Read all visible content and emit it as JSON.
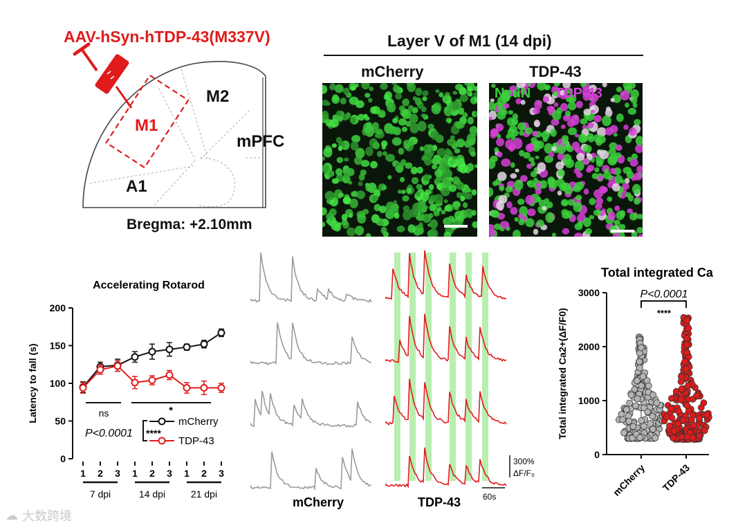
{
  "brain_schematic": {
    "injection_label": "AAV-hSyn-hTDP-43(M337V)",
    "region_m1": "M1",
    "region_m2": "M2",
    "region_mpfc": "mPFC",
    "region_a1": "A1",
    "bregma": "Bregma: +2.10mm",
    "colors": {
      "injection": "#e01b1b",
      "outline": "#333333"
    }
  },
  "microscopy": {
    "header": "Layer V of M1 (14 dpi)",
    "left_title": "mCherry",
    "right_title": "TDP-43",
    "stain_neun": "NeuN",
    "stain_tdp": "TDP-43",
    "colors": {
      "neun": "#3ccf3c",
      "tdp": "#d63fd6"
    }
  },
  "rotarod": {
    "chart_data": {
      "type": "line",
      "title": "Accelerating Rotarod",
      "ylabel": "Latency to fall (s)",
      "ylim": [
        0,
        200
      ],
      "yticks": [
        0,
        50,
        100,
        150,
        200
      ],
      "x_tick_labels": [
        "1",
        "2",
        "3",
        "1",
        "2",
        "3",
        "1",
        "2",
        "3"
      ],
      "groups": [
        "7 dpi",
        "14 dpi",
        "21 dpi"
      ],
      "series": [
        {
          "name": "mCherry",
          "color": "#111111",
          "values": [
            95,
            122,
            124,
            135,
            142,
            145,
            148,
            152,
            167
          ],
          "errors": [
            7,
            6,
            8,
            7,
            10,
            9,
            4,
            5,
            5
          ]
        },
        {
          "name": "TDP-43",
          "color": "#e01b1b",
          "values": [
            94,
            118,
            123,
            101,
            104,
            111,
            94,
            94,
            94
          ],
          "errors": [
            7,
            6,
            7,
            8,
            6,
            6,
            7,
            9,
            6
          ]
        }
      ],
      "sig_ns": "ns",
      "sig_star": "*",
      "p_label": "P<0.0001",
      "p_stars": "****"
    }
  },
  "traces": {
    "left_label": "mCherry",
    "right_label": "TDP-43",
    "scale_value": "300%",
    "scale_unit": "ΔF/F₀",
    "time_scale": "60s",
    "colors": {
      "mcherry": "#9a9a9a",
      "tdp": "#e01b1b",
      "highlight": "#b8eeb0"
    }
  },
  "calcium": {
    "chart_data": {
      "type": "violin",
      "title": "Total integrated Ca",
      "ylabel": "Total integrated Ca2+(ΔF/F0)",
      "ylim": [
        0,
        3000
      ],
      "yticks": [
        0,
        1000,
        2000,
        3000
      ],
      "categories": [
        "mCherry",
        "TDP-43"
      ],
      "max": [
        2230,
        2580
      ],
      "min": [
        300,
        280
      ],
      "p_label": "P<0.0001",
      "stars": "****",
      "colors": [
        "#b4b4b4",
        "#e01b1b"
      ]
    }
  },
  "watermark": "大数跨境"
}
